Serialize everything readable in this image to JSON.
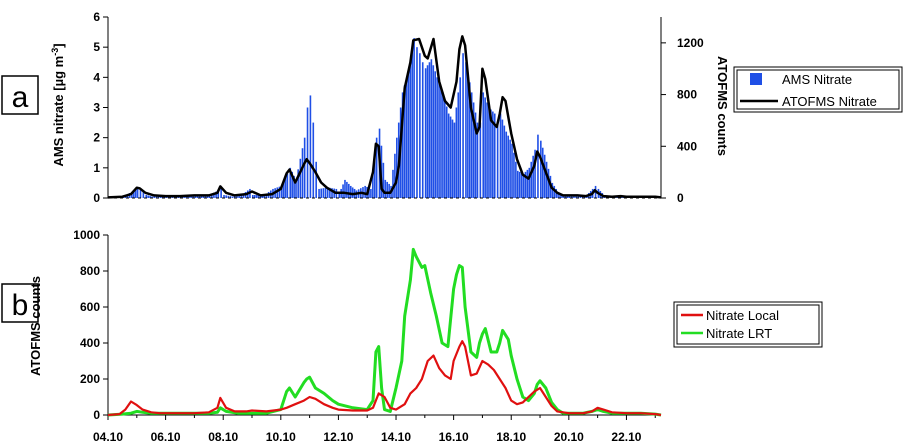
{
  "colors": {
    "ams": "#1f4fe6",
    "atofms": "#000000",
    "local": "#e01010",
    "lrt": "#22dd22"
  },
  "chart_data": [
    {
      "type": "area",
      "panel_label": "a",
      "ylabel": "AMS nitrate [µg m",
      "ylabel_sup": "-3",
      "ylabel_close": "]",
      "ylim": [
        0,
        6
      ],
      "yticks": [
        0,
        1,
        2,
        3,
        4,
        5,
        6
      ],
      "y2label": "ATOFMS counts",
      "y2lim": [
        0,
        1400
      ],
      "y2ticks": [
        0,
        400,
        800,
        1200
      ],
      "xlim": [
        4.0,
        23.2
      ],
      "grid": false,
      "legend_position": "right",
      "series": [
        {
          "name": "AMS Nitrate",
          "type": "bar",
          "axis": "left",
          "x": [
            4.0,
            4.5,
            4.8,
            5.0,
            5.1,
            5.2,
            5.3,
            5.5,
            5.8,
            6.0,
            6.5,
            7.0,
            7.5,
            7.8,
            7.9,
            8.0,
            8.3,
            8.6,
            8.9,
            9.0,
            9.4,
            9.7,
            10.0,
            10.2,
            10.3,
            10.5,
            10.8,
            10.9,
            11.0,
            11.1,
            11.2,
            11.3,
            11.6,
            11.9,
            12.0,
            12.2,
            12.4,
            12.6,
            12.9,
            13.1,
            13.3,
            13.4,
            13.6,
            13.8,
            14.0,
            14.2,
            14.4,
            14.6,
            14.7,
            14.8,
            14.9,
            15.0,
            15.2,
            15.4,
            15.6,
            15.8,
            16.0,
            16.2,
            16.3,
            16.4,
            16.6,
            16.8,
            16.9,
            17.0,
            17.2,
            17.4,
            17.5,
            17.6,
            17.8,
            18.0,
            18.2,
            18.4,
            18.6,
            18.8,
            18.9,
            19.0,
            19.2,
            19.4,
            19.6,
            19.8,
            20.0,
            20.3,
            20.6,
            20.8,
            20.9,
            21.0,
            21.2,
            21.5,
            21.8,
            22.0,
            22.3,
            22.6,
            23.0,
            23.2
          ],
          "values": [
            0.0,
            0.05,
            0.2,
            0.35,
            0.3,
            0.25,
            0.1,
            0.05,
            0.05,
            0.03,
            0.05,
            0.05,
            0.1,
            0.25,
            0.3,
            0.1,
            0.05,
            0.1,
            0.3,
            0.1,
            0.1,
            0.3,
            0.4,
            0.8,
            1.0,
            0.6,
            2.0,
            3.0,
            3.4,
            2.5,
            1.2,
            0.3,
            0.35,
            0.3,
            0.15,
            0.6,
            0.4,
            0.25,
            0.4,
            0.3,
            2.0,
            2.3,
            0.6,
            0.4,
            2.0,
            3.5,
            4.2,
            5.3,
            5.0,
            4.8,
            4.5,
            4.3,
            4.6,
            4.0,
            3.5,
            2.8,
            2.5,
            4.0,
            4.8,
            4.5,
            3.5,
            2.5,
            2.5,
            3.5,
            3.0,
            2.8,
            2.5,
            2.8,
            2.2,
            1.8,
            0.9,
            0.8,
            1.0,
            1.6,
            2.1,
            1.9,
            1.2,
            0.5,
            0.2,
            0.1,
            0.05,
            0.1,
            0.1,
            0.3,
            0.4,
            0.3,
            0.1,
            0.05,
            0.05,
            0.05,
            0.05,
            0.05,
            0.05,
            0.0
          ]
        },
        {
          "name": "ATOFMS Nitrate",
          "type": "line",
          "axis": "right",
          "x": [
            4.0,
            4.5,
            4.8,
            5.0,
            5.1,
            5.3,
            5.6,
            6.0,
            6.5,
            7.0,
            7.5,
            7.8,
            7.9,
            8.1,
            8.4,
            8.8,
            9.0,
            9.3,
            9.7,
            10.0,
            10.2,
            10.3,
            10.5,
            10.8,
            10.9,
            11.0,
            11.2,
            11.4,
            11.6,
            11.9,
            12.2,
            12.5,
            12.8,
            13.0,
            13.2,
            13.3,
            13.4,
            13.5,
            13.6,
            13.8,
            14.0,
            14.1,
            14.3,
            14.5,
            14.6,
            14.8,
            15.0,
            15.1,
            15.3,
            15.5,
            15.7,
            15.9,
            16.1,
            16.2,
            16.3,
            16.4,
            16.6,
            16.8,
            16.9,
            17.0,
            17.1,
            17.3,
            17.5,
            17.6,
            17.7,
            17.8,
            18.0,
            18.2,
            18.4,
            18.6,
            18.8,
            18.9,
            19.0,
            19.2,
            19.4,
            19.6,
            19.8,
            20.0,
            20.3,
            20.6,
            20.8,
            20.9,
            21.0,
            21.2,
            21.5,
            21.8,
            22.0,
            22.3,
            22.6,
            23.0,
            23.2
          ],
          "values": [
            5,
            10,
            30,
            80,
            75,
            40,
            20,
            15,
            15,
            20,
            20,
            40,
            90,
            40,
            20,
            30,
            50,
            20,
            30,
            70,
            190,
            220,
            120,
            260,
            300,
            270,
            200,
            120,
            80,
            40,
            40,
            30,
            40,
            30,
            200,
            420,
            400,
            70,
            40,
            40,
            120,
            250,
            850,
            1050,
            1220,
            1230,
            1100,
            1080,
            1230,
            900,
            750,
            700,
            900,
            1150,
            1250,
            1180,
            700,
            500,
            550,
            1000,
            920,
            600,
            550,
            650,
            780,
            750,
            500,
            300,
            180,
            150,
            250,
            360,
            320,
            200,
            80,
            40,
            20,
            20,
            20,
            15,
            30,
            60,
            40,
            15,
            10,
            15,
            10,
            10,
            10,
            10,
            5
          ]
        }
      ]
    },
    {
      "type": "line",
      "panel_label": "b",
      "ylabel": "ATOFMS counts",
      "ylim": [
        0,
        1000
      ],
      "yticks": [
        0,
        200,
        400,
        600,
        800,
        1000
      ],
      "xlim": [
        4.0,
        23.2
      ],
      "xticks": [
        4,
        6,
        8,
        10,
        12,
        14,
        16,
        18,
        20,
        22
      ],
      "xtick_labels": [
        "04.10",
        "06.10",
        "08.10",
        "10.10",
        "12.10",
        "14.10",
        "16.10",
        "18.10",
        "20.10",
        "22.10"
      ],
      "grid": false,
      "legend_position": "right",
      "series": [
        {
          "name": "Nitrate Local",
          "x": [
            4.0,
            4.4,
            4.6,
            4.8,
            5.0,
            5.2,
            5.5,
            5.8,
            6.0,
            6.5,
            7.0,
            7.5,
            7.8,
            7.9,
            8.1,
            8.4,
            8.8,
            9.0,
            9.5,
            10.0,
            10.2,
            10.5,
            10.8,
            11.0,
            11.2,
            11.5,
            11.8,
            12.0,
            12.5,
            13.0,
            13.2,
            13.4,
            13.6,
            13.8,
            14.0,
            14.3,
            14.5,
            14.7,
            14.9,
            15.1,
            15.3,
            15.5,
            15.7,
            15.9,
            16.0,
            16.2,
            16.3,
            16.4,
            16.6,
            16.8,
            17.0,
            17.2,
            17.4,
            17.6,
            17.8,
            18.0,
            18.2,
            18.4,
            18.6,
            18.8,
            19.0,
            19.2,
            19.4,
            19.6,
            20.0,
            20.5,
            20.8,
            21.0,
            21.2,
            21.5,
            22.0,
            22.5,
            23.0,
            23.2
          ],
          "values": [
            0,
            5,
            30,
            75,
            55,
            30,
            15,
            10,
            10,
            10,
            10,
            15,
            40,
            95,
            40,
            20,
            20,
            25,
            20,
            30,
            40,
            60,
            80,
            100,
            90,
            60,
            40,
            30,
            25,
            25,
            40,
            120,
            100,
            40,
            30,
            60,
            120,
            150,
            200,
            300,
            330,
            260,
            220,
            200,
            300,
            380,
            410,
            380,
            220,
            230,
            300,
            280,
            250,
            200,
            150,
            80,
            60,
            70,
            100,
            130,
            150,
            100,
            50,
            20,
            10,
            10,
            20,
            40,
            30,
            15,
            10,
            10,
            5,
            0
          ]
        },
        {
          "name": "Nitrate LRT",
          "x": [
            4.0,
            4.5,
            4.8,
            5.0,
            5.2,
            5.5,
            6.0,
            6.5,
            7.0,
            7.5,
            7.8,
            7.9,
            8.1,
            8.5,
            9.0,
            9.5,
            10.0,
            10.2,
            10.3,
            10.5,
            10.8,
            10.9,
            11.0,
            11.2,
            11.5,
            11.8,
            12.0,
            12.5,
            13.0,
            13.2,
            13.3,
            13.4,
            13.5,
            13.6,
            13.8,
            14.0,
            14.2,
            14.3,
            14.5,
            14.6,
            14.7,
            14.9,
            15.0,
            15.2,
            15.4,
            15.6,
            15.8,
            16.0,
            16.1,
            16.2,
            16.3,
            16.4,
            16.6,
            16.8,
            16.9,
            17.0,
            17.1,
            17.3,
            17.5,
            17.6,
            17.7,
            17.9,
            18.0,
            18.2,
            18.4,
            18.6,
            18.8,
            18.9,
            19.0,
            19.2,
            19.4,
            19.6,
            19.8,
            20.0,
            20.5,
            20.8,
            21.0,
            21.2,
            21.5,
            22.0,
            22.5,
            23.0,
            23.2
          ],
          "values": [
            0,
            5,
            10,
            20,
            15,
            10,
            10,
            10,
            10,
            10,
            15,
            40,
            20,
            10,
            10,
            10,
            30,
            130,
            150,
            100,
            180,
            200,
            210,
            150,
            120,
            80,
            60,
            40,
            30,
            80,
            350,
            380,
            150,
            30,
            20,
            150,
            300,
            550,
            750,
            920,
            880,
            820,
            830,
            680,
            550,
            400,
            380,
            700,
            780,
            830,
            820,
            600,
            350,
            320,
            400,
            450,
            480,
            350,
            350,
            400,
            470,
            420,
            330,
            200,
            100,
            80,
            120,
            170,
            190,
            150,
            70,
            30,
            10,
            10,
            10,
            20,
            30,
            20,
            10,
            10,
            10,
            5,
            0
          ]
        }
      ]
    }
  ]
}
